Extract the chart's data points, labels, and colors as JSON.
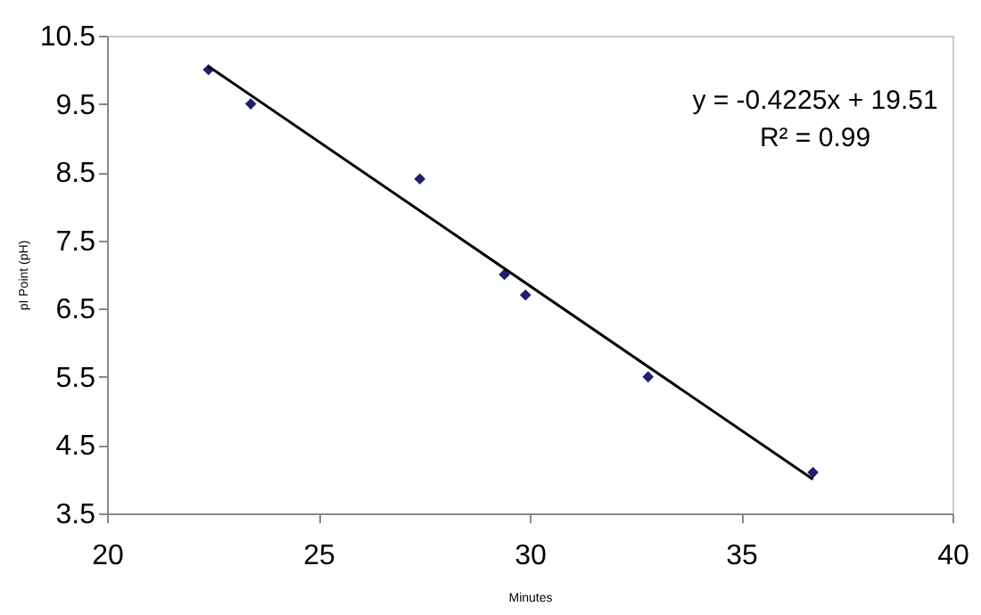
{
  "chart_data": {
    "type": "scatter",
    "xlabel": "Minutes",
    "ylabel": "pI Point (pH)",
    "series": [
      {
        "color": "#1f1f6b",
        "marker": "diamond",
        "x": [
          22.4,
          23.4,
          27.4,
          29.4,
          29.9,
          32.8,
          36.7
        ],
        "values": [
          10.0,
          9.5,
          8.4,
          7.0,
          6.7,
          5.5,
          4.1
        ]
      },
      {
        "type": "line",
        "color": "#000000",
        "x": [
          22.4,
          36.7
        ],
        "values": [
          10.05,
          4.0
        ]
      }
    ],
    "xlim": [
      20,
      40
    ],
    "xticks": [
      20,
      25,
      30,
      35,
      40
    ],
    "ylim": [
      3.5,
      10.5
    ],
    "yticks": [
      3.5,
      4.5,
      5.5,
      6.5,
      7.5,
      8.5,
      9.5,
      10.5
    ],
    "grid": false,
    "annotations": [
      "y = -0.4225x + 19.51",
      "R² = 0.99"
    ]
  }
}
